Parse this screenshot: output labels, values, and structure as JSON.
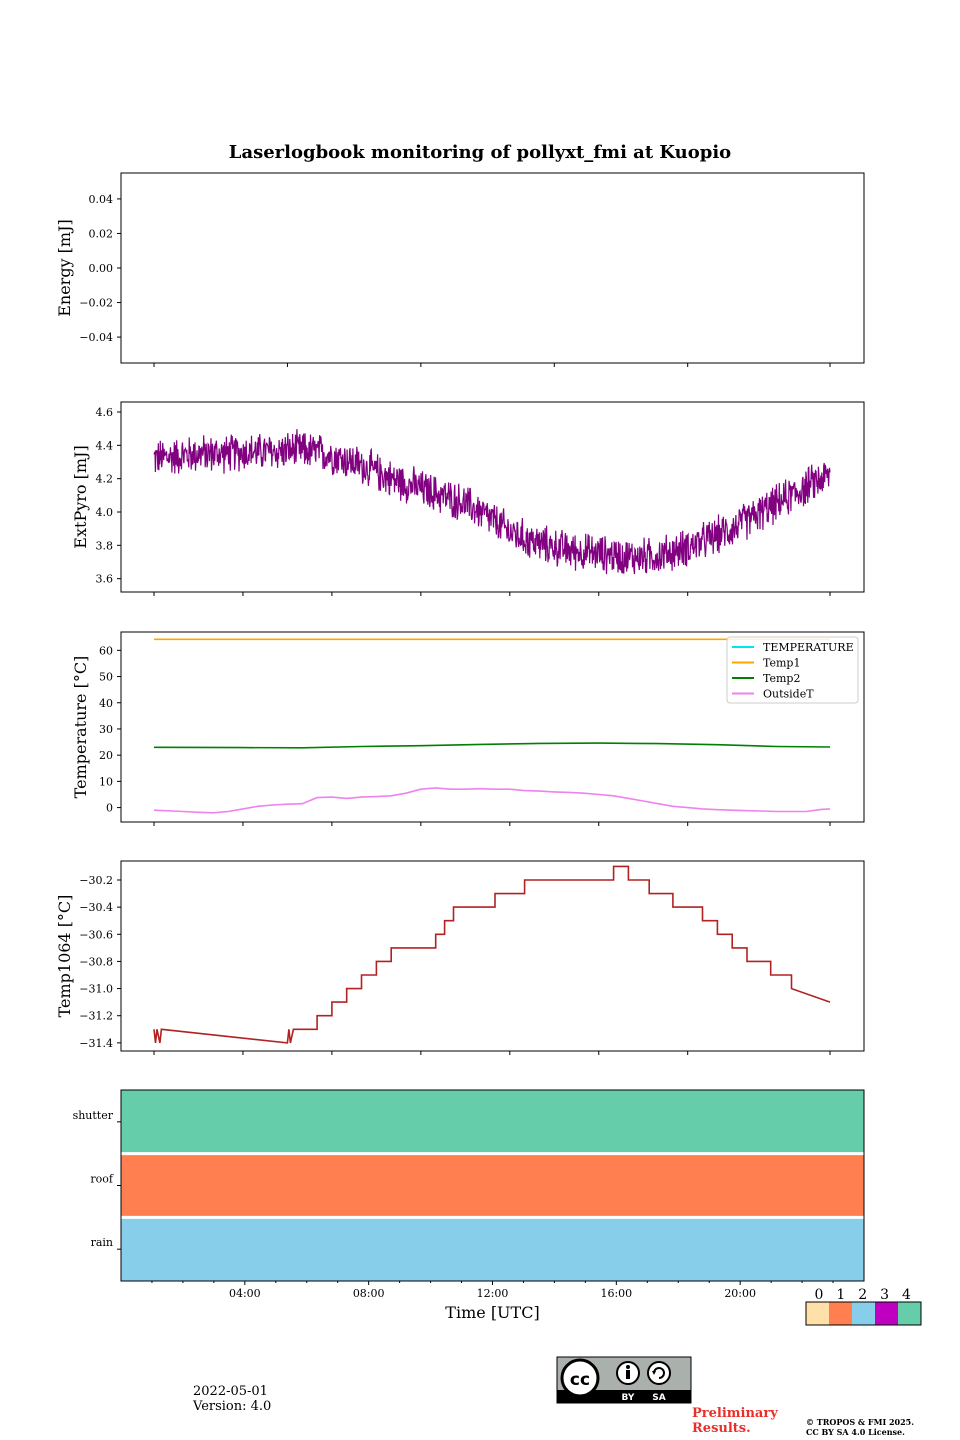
{
  "title": "Laserlogbook monitoring of pollyxt_fmi at Kuopio",
  "chart_data": [
    {
      "type": "line",
      "id": "energy",
      "ylabel": "Energy [mJ]",
      "ylim": [
        -0.055,
        0.055
      ],
      "yticks": [
        0.04,
        0.02,
        0.0,
        -0.02,
        -0.04
      ],
      "ytick_labels": [
        "0.04",
        "0.02",
        "0.00",
        "−0.02",
        "−0.04"
      ],
      "series": []
    },
    {
      "type": "line",
      "id": "extpyro",
      "ylabel": "ExtPyro [mJ]",
      "ylim": [
        3.52,
        4.66
      ],
      "yticks": [
        4.6,
        4.4,
        4.2,
        4.0,
        3.8,
        3.6
      ],
      "ytick_labels": [
        "4.6",
        "4.4",
        "4.2",
        "4.0",
        "3.8",
        "3.6"
      ],
      "series": [
        {
          "name": "ExtPyro",
          "color": "#800080",
          "x": [
            0.0,
            0.5,
            1.0,
            1.5,
            2.0,
            2.5,
            3.0,
            3.5,
            4.0,
            4.5,
            5.0,
            5.5,
            6.0,
            6.5,
            7.0,
            7.5,
            8.0,
            8.5,
            9.0,
            9.5,
            10.0,
            10.5,
            11.0,
            11.5,
            12.0,
            12.5,
            13.0,
            13.5,
            14.0,
            14.5,
            15.0,
            15.5,
            16.0,
            16.5,
            17.0,
            17.5,
            18.0,
            18.5,
            19.0,
            19.5,
            20.0,
            20.5,
            21.0,
            21.5,
            22.0,
            22.5,
            22.8
          ],
          "y": [
            4.32,
            4.33,
            4.34,
            4.35,
            4.35,
            4.35,
            4.36,
            4.36,
            4.36,
            4.37,
            4.37,
            4.36,
            4.34,
            4.31,
            4.28,
            4.24,
            4.2,
            4.17,
            4.14,
            4.11,
            4.08,
            4.05,
            4.0,
            3.94,
            3.88,
            3.84,
            3.81,
            3.79,
            3.77,
            3.76,
            3.75,
            3.74,
            3.73,
            3.73,
            3.74,
            3.76,
            3.79,
            3.82,
            3.86,
            3.9,
            3.95,
            4.0,
            4.05,
            4.1,
            4.15,
            4.2,
            4.22
          ],
          "noise_amplitude": 0.12
        }
      ]
    },
    {
      "type": "line",
      "id": "temperature",
      "ylabel": "Temperature [°C]",
      "ylim": [
        -5.5,
        67
      ],
      "yticks": [
        60,
        50,
        40,
        30,
        20,
        10,
        0
      ],
      "ytick_labels": [
        "60",
        "50",
        "40",
        "30",
        "20",
        "10",
        "0"
      ],
      "legend": "top-right",
      "series": [
        {
          "name": "TEMPERATURE",
          "color": "#00e5ee",
          "x": [],
          "y": []
        },
        {
          "name": "Temp1",
          "color": "#ffa500",
          "x": [
            0,
            22.8
          ],
          "y": [
            64.2,
            64.2
          ]
        },
        {
          "name": "Temp2",
          "color": "#008000",
          "x": [
            0,
            3,
            5,
            7,
            9,
            11,
            13,
            15,
            17,
            19,
            21,
            22.8
          ],
          "y": [
            23.0,
            22.9,
            22.8,
            23.3,
            23.6,
            24.1,
            24.5,
            24.6,
            24.4,
            24.0,
            23.3,
            23.1
          ]
        },
        {
          "name": "OutsideT",
          "color": "#ee82ee",
          "x": [
            0,
            1,
            1.5,
            2,
            2.5,
            3,
            3.5,
            4,
            4.5,
            5,
            5.5,
            6,
            6.5,
            7,
            7.5,
            8,
            8.5,
            9,
            9.5,
            10,
            10.5,
            11,
            11.5,
            12,
            12.5,
            13,
            13.5,
            14,
            14.5,
            15,
            15.5,
            16,
            16.5,
            17,
            17.5,
            18,
            18.5,
            19,
            19.5,
            20,
            20.5,
            21,
            21.5,
            22,
            22.5,
            22.8
          ],
          "y": [
            -1.0,
            -1.5,
            -1.8,
            -2.0,
            -1.5,
            -0.5,
            0.5,
            1.0,
            1.3,
            1.5,
            3.8,
            4.0,
            3.5,
            4.0,
            4.2,
            4.5,
            5.5,
            7.0,
            7.5,
            7.0,
            7.0,
            7.2,
            7.0,
            7.0,
            6.5,
            6.3,
            6.0,
            5.8,
            5.5,
            5.0,
            4.5,
            3.5,
            2.5,
            1.5,
            0.5,
            0.0,
            -0.5,
            -0.8,
            -1.0,
            -1.2,
            -1.3,
            -1.5,
            -1.5,
            -1.5,
            -0.7,
            -0.5
          ]
        }
      ]
    },
    {
      "type": "line",
      "id": "temp1064",
      "ylabel": "Temp1064 [°C]",
      "ylim": [
        -31.46,
        -30.06
      ],
      "yticks": [
        -30.2,
        -30.4,
        -30.6,
        -30.8,
        -31.0,
        -31.2,
        -31.4
      ],
      "ytick_labels": [
        "−30.2",
        "−30.4",
        "−30.6",
        "−30.8",
        "−31.0",
        "−31.2",
        "−31.4"
      ],
      "series": [
        {
          "name": "Temp1064",
          "color": "#b22222",
          "x": [
            0,
            0.05,
            0.1,
            0.2,
            0.25,
            4.5,
            4.55,
            4.6,
            4.7,
            4.75,
            5.5,
            5.5,
            6.0,
            6.0,
            6.5,
            6.5,
            7.0,
            7.0,
            7.5,
            7.5,
            8.0,
            8.0,
            9.5,
            9.5,
            9.8,
            9.8,
            10.1,
            10.1,
            11.5,
            11.5,
            12.5,
            12.5,
            15.5,
            15.5,
            16.0,
            16.0,
            16.7,
            16.7,
            17.5,
            17.5,
            18.5,
            18.5,
            19.0,
            19.0,
            19.5,
            19.5,
            20.0,
            20.0,
            20.8,
            20.8,
            21.5,
            21.5,
            22.8
          ],
          "y": [
            -31.3,
            -31.4,
            -31.3,
            -31.4,
            -31.3,
            -31.4,
            -31.3,
            -31.4,
            -31.3,
            -31.3,
            -31.3,
            -31.2,
            -31.2,
            -31.1,
            -31.1,
            -31.0,
            -31.0,
            -30.9,
            -30.9,
            -30.8,
            -30.8,
            -30.7,
            -30.7,
            -30.6,
            -30.6,
            -30.5,
            -30.5,
            -30.4,
            -30.4,
            -30.3,
            -30.3,
            -30.2,
            -30.2,
            -30.1,
            -30.1,
            -30.2,
            -30.2,
            -30.3,
            -30.3,
            -30.4,
            -30.4,
            -30.5,
            -30.5,
            -30.6,
            -30.6,
            -30.7,
            -30.7,
            -30.8,
            -30.8,
            -30.9,
            -30.9,
            -31.0,
            -31.1
          ]
        }
      ]
    },
    {
      "type": "heatmap",
      "id": "status",
      "rows": [
        "shutter",
        "roof",
        "rain"
      ],
      "row_values": [
        4,
        1,
        2
      ],
      "xlabel": "Time [UTC]",
      "xticks": [
        4,
        8,
        12,
        16,
        20
      ],
      "xtick_labels": [
        "04:00",
        "08:00",
        "12:00",
        "16:00",
        "20:00"
      ],
      "xlim": [
        0,
        24
      ],
      "colorbar": {
        "values": [
          0,
          1,
          2,
          3,
          4
        ],
        "labels": [
          "0",
          "1",
          "2",
          "3",
          "4"
        ],
        "colors": [
          "#ffe0a8",
          "#ff7f50",
          "#87ceeb",
          "#c000c0",
          "#66cdaa"
        ]
      }
    }
  ],
  "footer": {
    "date": "2022-05-01",
    "version": "Version: 4.0",
    "preliminary": "Preliminary",
    "results": "Results.",
    "copyright": "© TROPOS & FMI 2025.",
    "license": "CC BY SA 4.0 License.",
    "license_badge": [
      "BY",
      "SA"
    ]
  }
}
